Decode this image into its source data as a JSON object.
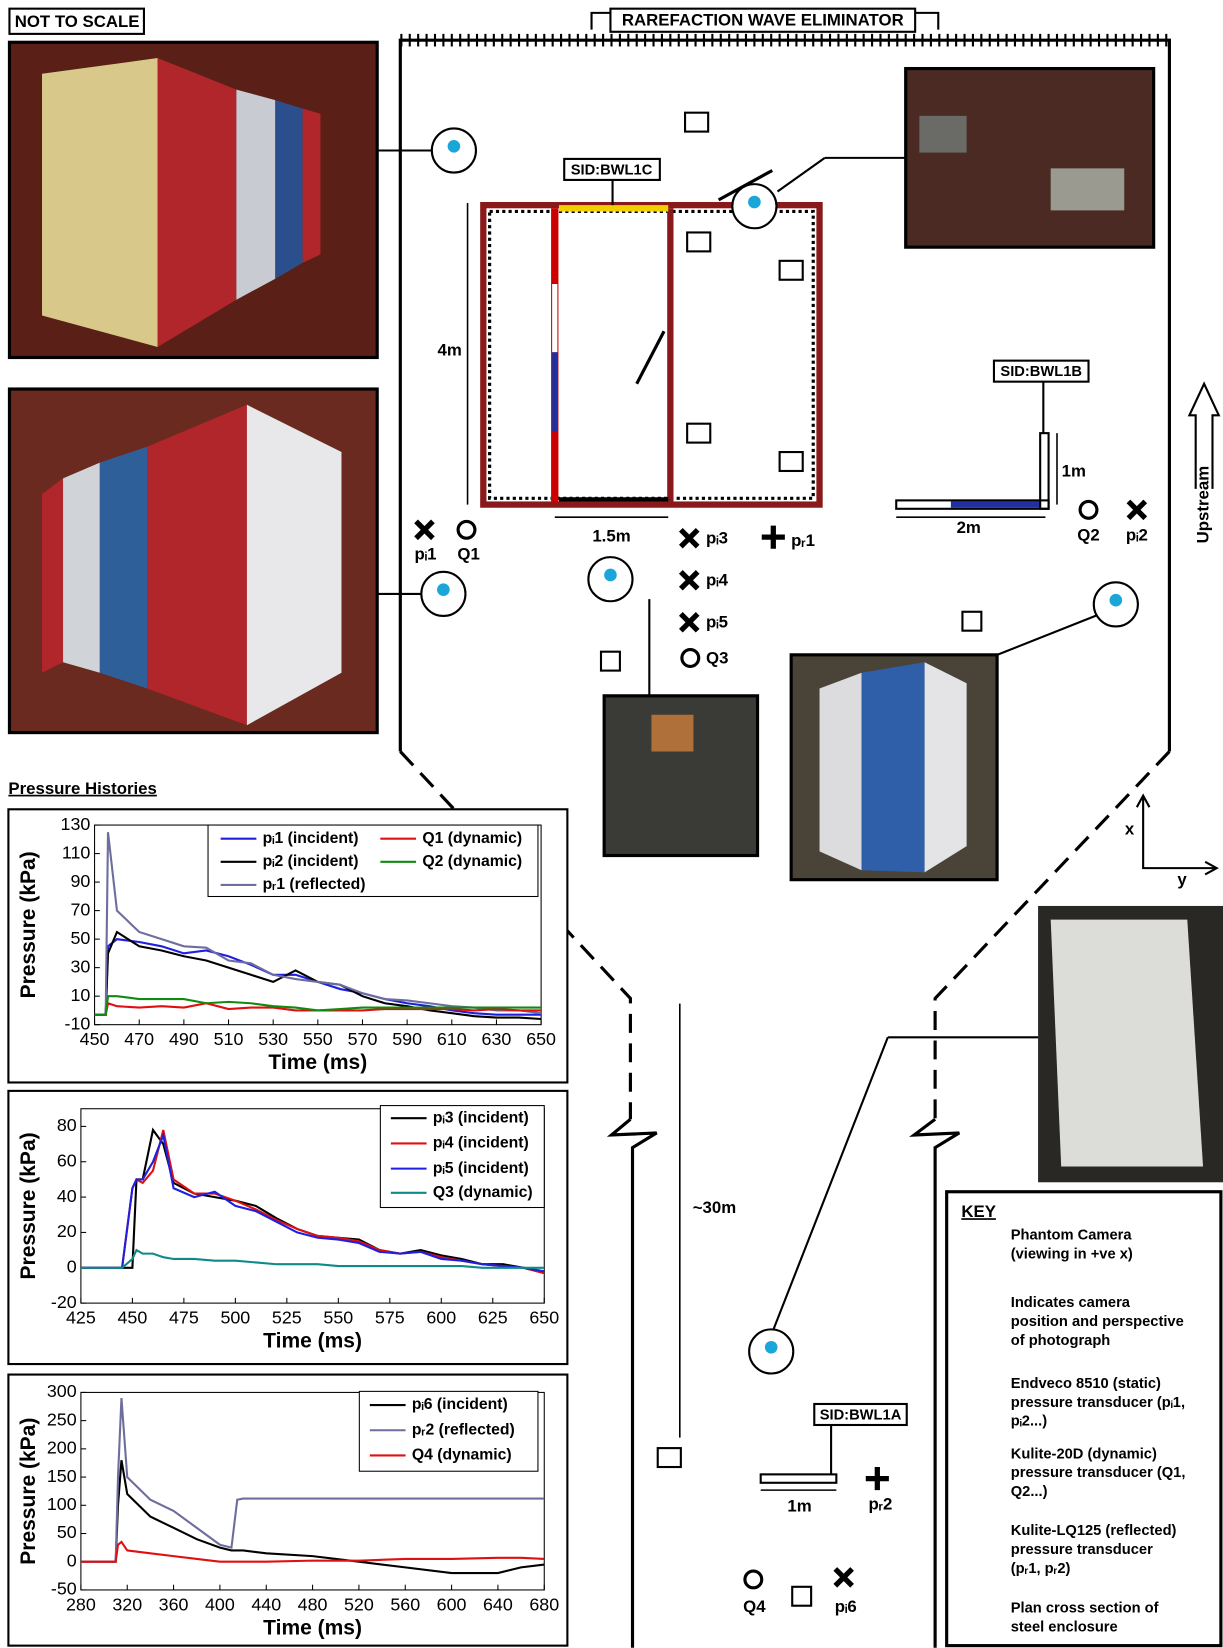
{
  "header": {
    "note": "NOT TO SCALE",
    "eliminator": "RAREFACTION WAVE ELIMINATOR"
  },
  "labels": {
    "sid_bwl1c": "SID:BWL1C",
    "sid_bwl1b": "SID:BWL1B",
    "sid_bwl1a": "SID:BWL1A",
    "dim_4m": "4m",
    "dim_1_5m": "1.5m",
    "dim_1m_b": "1m",
    "dim_2m": "2m",
    "dim_1m_a": "1m",
    "dim_30m": "~30m",
    "pi1": "pᵢ1",
    "q1": "Q1",
    "pi3": "pᵢ3",
    "pi4": "pᵢ4",
    "pi5": "pᵢ5",
    "q3": "Q3",
    "pr1": "pᵣ1",
    "q2": "Q2",
    "pi2": "pᵢ2",
    "q4": "Q4",
    "pi6": "pᵢ6",
    "pr2": "pᵣ2",
    "upstream": "Upstream",
    "axis_x": "x",
    "axis_y": "y"
  },
  "section_title": "Pressure Histories",
  "key": {
    "title": "KEY",
    "items": [
      [
        "Phantom Camera",
        "(viewing in +ve x)"
      ],
      [
        "Indicates camera",
        "position and perspective",
        "of photograph"
      ],
      [
        "Endveco 8510 (static)",
        "pressure transducer (pᵢ1,",
        "pᵢ2...)"
      ],
      [
        "Kulite-20D (dynamic)",
        "pressure transducer (Q1,",
        "Q2...)"
      ],
      [
        "Kulite-LQ125 (reflected)",
        "pressure transducer",
        "(pᵣ1, pᵣ2)"
      ],
      [
        "Plan cross section of",
        "steel enclosure"
      ]
    ]
  },
  "chart_data": [
    {
      "type": "line",
      "xlabel": "Time (ms)",
      "ylabel": "Pressure (kPa)",
      "xlim": [
        450,
        650
      ],
      "ylim": [
        -10,
        130
      ],
      "xticks": [
        450,
        470,
        490,
        510,
        530,
        550,
        570,
        590,
        610,
        630,
        650
      ],
      "yticks": [
        -10,
        10,
        30,
        50,
        70,
        90,
        110,
        130
      ],
      "x": [
        450,
        455,
        456,
        460,
        470,
        480,
        490,
        500,
        510,
        520,
        530,
        540,
        550,
        560,
        570,
        580,
        590,
        600,
        610,
        620,
        630,
        640,
        650
      ],
      "series": [
        {
          "name": "pᵢ1 (incident)",
          "color": "#1f1fe0",
          "values": [
            -3,
            -3,
            45,
            50,
            48,
            45,
            40,
            42,
            38,
            32,
            25,
            25,
            20,
            15,
            12,
            8,
            5,
            3,
            0,
            -2,
            -3,
            -3,
            -3
          ]
        },
        {
          "name": "pᵢ2 (incident)",
          "color": "#000000",
          "values": [
            -3,
            -3,
            40,
            55,
            45,
            42,
            38,
            35,
            30,
            25,
            20,
            28,
            20,
            18,
            10,
            5,
            3,
            0,
            -2,
            -4,
            -5,
            -5,
            -6
          ]
        },
        {
          "name": "pᵣ1 (reflected)",
          "color": "#6e6e9e",
          "values": [
            -3,
            -3,
            125,
            70,
            55,
            50,
            45,
            44,
            35,
            33,
            25,
            22,
            20,
            18,
            12,
            8,
            7,
            5,
            3,
            2,
            0,
            0,
            -2
          ]
        },
        {
          "name": "Q1 (dynamic)",
          "color": "#e01010",
          "values": [
            -3,
            -3,
            5,
            3,
            2,
            3,
            2,
            5,
            1,
            2,
            2,
            0,
            0,
            0,
            0,
            1,
            1,
            1,
            1,
            0,
            1,
            0,
            0
          ]
        },
        {
          "name": "Q2 (dynamic)",
          "color": "#108a10",
          "values": [
            -3,
            -3,
            10,
            10,
            8,
            8,
            8,
            5,
            6,
            5,
            3,
            2,
            0,
            1,
            2,
            2,
            2,
            2,
            2,
            2,
            2,
            2,
            2
          ]
        }
      ]
    },
    {
      "type": "line",
      "xlabel": "Time (ms)",
      "ylabel": "Pressure (kPa)",
      "xlim": [
        425,
        650
      ],
      "ylim": [
        -20,
        90
      ],
      "xticks": [
        425,
        450,
        475,
        500,
        525,
        550,
        575,
        600,
        625,
        650
      ],
      "yticks": [
        -20,
        0,
        20,
        40,
        60,
        80
      ],
      "x": [
        425,
        445,
        450,
        452,
        455,
        460,
        465,
        470,
        480,
        490,
        500,
        510,
        520,
        530,
        540,
        550,
        560,
        570,
        580,
        590,
        600,
        610,
        620,
        630,
        640,
        650
      ],
      "series": [
        {
          "name": "pᵢ3 (incident)",
          "color": "#000000",
          "values": [
            0,
            0,
            0,
            50,
            50,
            78,
            70,
            48,
            42,
            40,
            38,
            35,
            28,
            22,
            18,
            17,
            16,
            10,
            8,
            10,
            7,
            5,
            2,
            2,
            0,
            -3
          ]
        },
        {
          "name": "pᵢ4 (incident)",
          "color": "#e01010",
          "values": [
            0,
            0,
            45,
            50,
            48,
            55,
            78,
            50,
            42,
            42,
            38,
            33,
            27,
            22,
            18,
            17,
            15,
            10,
            8,
            9,
            6,
            4,
            2,
            1,
            0,
            -3
          ]
        },
        {
          "name": "pᵢ5 (incident)",
          "color": "#1f1fe0",
          "values": [
            0,
            0,
            45,
            50,
            50,
            60,
            75,
            45,
            40,
            43,
            35,
            32,
            26,
            20,
            17,
            16,
            14,
            9,
            8,
            9,
            5,
            4,
            2,
            1,
            0,
            -2
          ]
        },
        {
          "name": "Q3 (dynamic)",
          "color": "#0f8a8a",
          "values": [
            0,
            0,
            5,
            10,
            8,
            8,
            6,
            5,
            5,
            4,
            4,
            3,
            2,
            2,
            2,
            1,
            1,
            1,
            1,
            1,
            1,
            1,
            0,
            0,
            0,
            0
          ]
        }
      ]
    },
    {
      "type": "line",
      "xlabel": "Time (ms)",
      "ylabel": "Pressure (kPa)",
      "xlim": [
        280,
        680
      ],
      "ylim": [
        -50,
        300
      ],
      "xticks": [
        280,
        320,
        360,
        400,
        440,
        480,
        520,
        560,
        600,
        640,
        680
      ],
      "yticks": [
        -50,
        0,
        50,
        100,
        150,
        200,
        250,
        300
      ],
      "x": [
        280,
        310,
        312,
        315,
        320,
        340,
        360,
        380,
        400,
        410,
        415,
        420,
        440,
        480,
        520,
        560,
        600,
        640,
        660,
        680
      ],
      "series": [
        {
          "name": "pᵢ6  (incident)",
          "color": "#000000",
          "values": [
            0,
            0,
            100,
            180,
            120,
            80,
            60,
            40,
            25,
            20,
            20,
            20,
            15,
            10,
            0,
            -10,
            -20,
            -20,
            -10,
            -5
          ]
        },
        {
          "name": "pᵣ2  (reflected)",
          "color": "#6e6e9e",
          "values": [
            0,
            0,
            150,
            290,
            150,
            110,
            90,
            60,
            30,
            25,
            110,
            112,
            112,
            112,
            112,
            112,
            112,
            112,
            112,
            112
          ]
        },
        {
          "name": "Q4  (dynamic)",
          "color": "#e01010",
          "values": [
            0,
            0,
            30,
            35,
            20,
            15,
            10,
            5,
            0,
            0,
            0,
            0,
            0,
            2,
            2,
            5,
            5,
            7,
            7,
            5
          ]
        }
      ]
    }
  ]
}
